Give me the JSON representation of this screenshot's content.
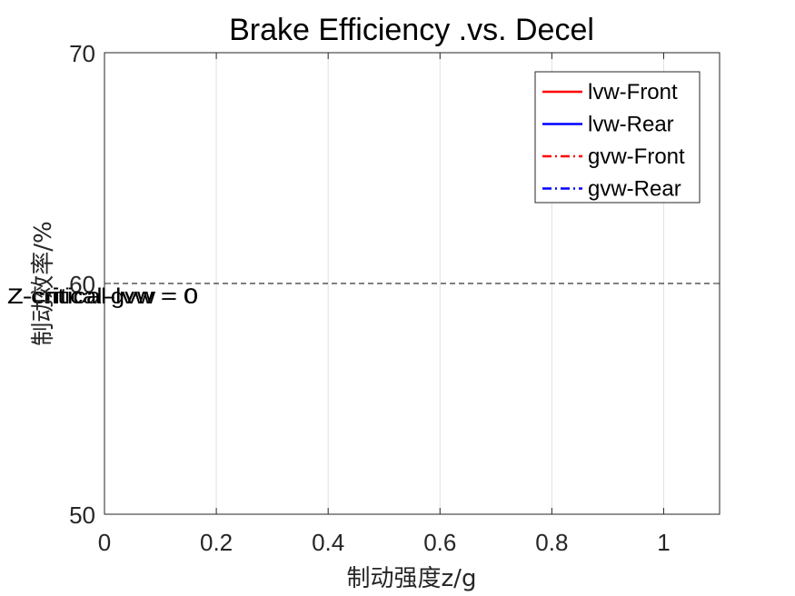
{
  "chart_data": {
    "type": "line",
    "title": "Brake Efficiency .vs. Decel",
    "xlabel": "制动强度z/g",
    "ylabel": "制动效率/%",
    "xlim": [
      0,
      1.1
    ],
    "ylim": [
      50,
      70
    ],
    "x_ticks": [
      0,
      0.2,
      0.4,
      0.6,
      0.8,
      1
    ],
    "x_tick_labels": [
      "0",
      "0.2",
      "0.4",
      "0.6",
      "0.8",
      "1"
    ],
    "y_ticks": [
      50,
      60,
      70
    ],
    "y_tick_labels": [
      "50",
      "60",
      "70"
    ],
    "grid": {
      "x": true,
      "y": false
    },
    "legend": {
      "placement": "top-right",
      "entries": [
        {
          "name": "lvw-Front",
          "color": "#ff0000",
          "style": "solid"
        },
        {
          "name": "lvw-Rear",
          "color": "#0000ff",
          "style": "solid"
        },
        {
          "name": "gvw-Front",
          "color": "#ff0000",
          "style": "dashdot"
        },
        {
          "name": "gvw-Rear",
          "color": "#0000ff",
          "style": "dashdot"
        }
      ]
    },
    "series": [
      {
        "name": "lvw-Front",
        "x": [],
        "y": []
      },
      {
        "name": "lvw-Rear",
        "x": [],
        "y": []
      },
      {
        "name": "gvw-Front",
        "x": [],
        "y": []
      },
      {
        "name": "gvw-Rear",
        "x": [],
        "y": []
      }
    ],
    "reference_line": {
      "y": 60,
      "color": "#000000",
      "style": "dashed"
    },
    "annotations": [
      {
        "text": "Z-critical-lvw = 0",
        "x": 0,
        "y": 60
      },
      {
        "text": "Z-critical-gvw = 0",
        "x": 0,
        "y": 60
      }
    ]
  }
}
